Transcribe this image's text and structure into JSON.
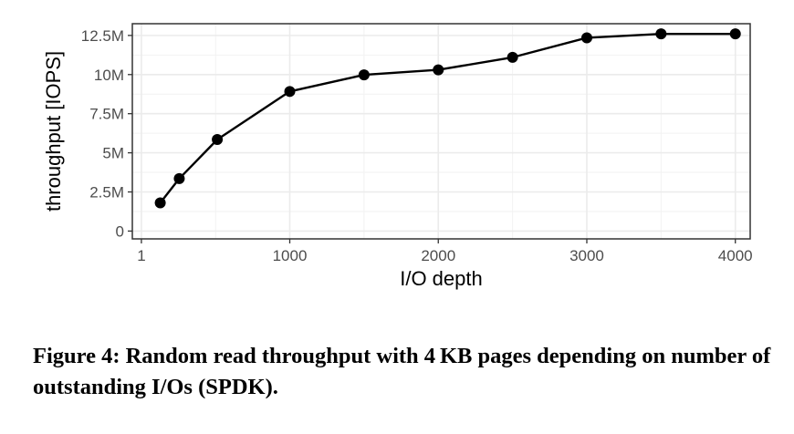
{
  "chart_data": {
    "type": "line",
    "xlabel": "I/O depth",
    "ylabel": "throughput [IOPS]",
    "xlim": [
      -60,
      4100
    ],
    "ylim": [
      -500000,
      13250000
    ],
    "xticks": [
      1,
      1000,
      2000,
      3000,
      4000
    ],
    "xtick_labels": [
      "1",
      "1000",
      "2000",
      "3000",
      "4000"
    ],
    "yticks": [
      0,
      2500000,
      5000000,
      7500000,
      10000000,
      12500000
    ],
    "ytick_labels": [
      "0",
      "2.5M",
      "5M",
      "7.5M",
      "10M",
      "12.5M"
    ],
    "grid": true,
    "series": [
      {
        "x": [
          128,
          256,
          512,
          1000,
          1500,
          2000,
          2500,
          3000,
          3500,
          4000
        ],
        "values": [
          1800000,
          3350000,
          5850000,
          8920000,
          9980000,
          10300000,
          11100000,
          12350000,
          12600000,
          12600000
        ]
      }
    ]
  },
  "caption": "Figure 4: Random read throughput with 4 KB pages depending on number of outstanding I/Os (SPDK)."
}
